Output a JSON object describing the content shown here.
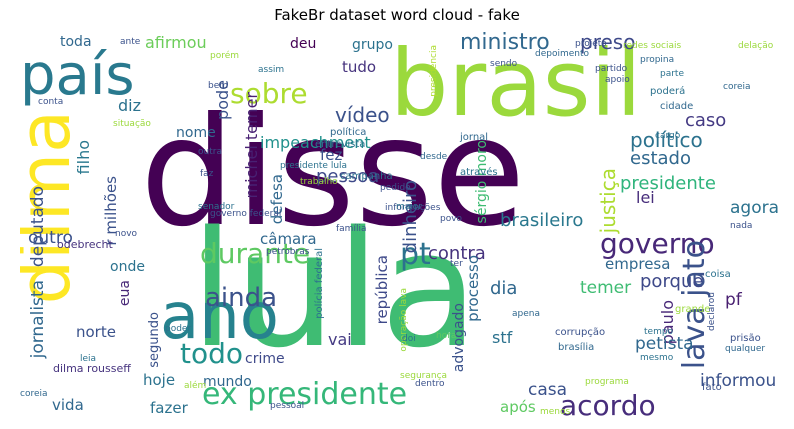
{
  "title": "FakeBr dataset word cloud - fake",
  "words": [
    {
      "text": "disse",
      "color": "#440154"
    },
    {
      "text": "lula",
      "color": "#3fbc73"
    },
    {
      "text": "brasil",
      "color": "#9bd93c"
    },
    {
      "text": "país",
      "color": "#29798e"
    },
    {
      "text": "dilma",
      "color": "#fde725"
    },
    {
      "text": "ano",
      "color": "#26828e"
    },
    {
      "text": "ex presidente",
      "color": "#35b779"
    },
    {
      "text": "acordo",
      "color": "#472d7b"
    },
    {
      "text": "governo",
      "color": "#482878"
    },
    {
      "text": "durante",
      "color": "#5ec962"
    },
    {
      "text": "lava jato",
      "color": "#3b528b"
    },
    {
      "text": "todo",
      "color": "#21918c"
    },
    {
      "text": "ainda",
      "color": "#3b528b"
    },
    {
      "text": "sobre",
      "color": "#addc30"
    },
    {
      "text": "pt",
      "color": "#2c728e"
    },
    {
      "text": "ministro",
      "color": "#31688e"
    },
    {
      "text": "preso",
      "color": "#3e4989"
    },
    {
      "text": "vídeo",
      "color": "#3b528b"
    },
    {
      "text": "político",
      "color": "#2c728e"
    },
    {
      "text": "presidente",
      "color": "#2fb47c"
    },
    {
      "text": "estado",
      "color": "#31688e"
    },
    {
      "text": "caso",
      "color": "#443a83"
    },
    {
      "text": "brasileiro",
      "color": "#2a788e"
    },
    {
      "text": "contra",
      "color": "#46337e"
    },
    {
      "text": "justiça",
      "color": "#addc30"
    },
    {
      "text": "dinheiro",
      "color": "#3b528b"
    },
    {
      "text": "pessoa",
      "color": "#3e4989"
    },
    {
      "text": "michel temer",
      "color": "#482173"
    },
    {
      "text": "deputado",
      "color": "#3b528b"
    },
    {
      "text": "jornalista",
      "color": "#31688e"
    },
    {
      "text": "afirmou",
      "color": "#6ccd5a"
    },
    {
      "text": "impeachment",
      "color": "#21918c"
    },
    {
      "text": "diz",
      "color": "#2c728e"
    },
    {
      "text": "filho",
      "color": "#2a788e"
    },
    {
      "text": "pode",
      "color": "#3b528b"
    },
    {
      "text": "nome",
      "color": "#31688e"
    },
    {
      "text": "toda",
      "color": "#31688e"
    },
    {
      "text": "deu",
      "color": "#440154"
    },
    {
      "text": "tudo",
      "color": "#46337e"
    },
    {
      "text": "grupo",
      "color": "#2c728e"
    },
    {
      "text": "sérgio moro",
      "color": "#3fbc73"
    },
    {
      "text": "defesa",
      "color": "#31688e"
    },
    {
      "text": "fez",
      "color": "#3b528b"
    },
    {
      "text": "lei",
      "color": "#472d7b"
    },
    {
      "text": "agora",
      "color": "#2c728e"
    },
    {
      "text": "dia",
      "color": "#31688e"
    },
    {
      "text": "temer",
      "color": "#3fbc73"
    },
    {
      "text": "porque",
      "color": "#3e4989"
    },
    {
      "text": "empresa",
      "color": "#31688e"
    },
    {
      "text": "pf",
      "color": "#481f70"
    },
    {
      "text": "paulo",
      "color": "#482878"
    },
    {
      "text": "petista",
      "color": "#31688e"
    },
    {
      "text": "casa",
      "color": "#3b528b"
    },
    {
      "text": "informou",
      "color": "#3b528b"
    },
    {
      "text": "após",
      "color": "#5ec962"
    },
    {
      "text": "stf",
      "color": "#2c728e"
    },
    {
      "text": "processo",
      "color": "#31688e"
    },
    {
      "text": "república",
      "color": "#3e4989"
    },
    {
      "text": "advogado",
      "color": "#3b528b"
    },
    {
      "text": "vai",
      "color": "#443a83"
    },
    {
      "text": "crime",
      "color": "#3e4989"
    },
    {
      "text": "mundo",
      "color": "#31688e"
    },
    {
      "text": "hoje",
      "color": "#2c728e"
    },
    {
      "text": "fazer",
      "color": "#2c728e"
    },
    {
      "text": "vida",
      "color": "#31688e"
    },
    {
      "text": "segundo",
      "color": "#3b528b"
    },
    {
      "text": "eua",
      "color": "#482878"
    },
    {
      "text": "norte",
      "color": "#3b528b"
    },
    {
      "text": "onde",
      "color": "#2c728e"
    },
    {
      "text": "outro",
      "color": "#3b528b"
    },
    {
      "text": "câmara",
      "color": "#31688e"
    },
    {
      "text": "r milhões",
      "color": "#3b528b"
    },
    {
      "text": "odebrecht",
      "color": "#46337e"
    },
    {
      "text": "dilma rousseff",
      "color": "#46337e"
    },
    {
      "text": "polícia federal",
      "color": "#2c728e"
    },
    {
      "text": "operação lava",
      "color": "#9bd93c"
    },
    {
      "text": "petrobras",
      "color": "#3b528b"
    },
    {
      "text": "segurança",
      "color": "#9bd93c"
    },
    {
      "text": "entrevista",
      "color": "#2c728e"
    },
    {
      "text": "política",
      "color": "#31688e"
    },
    {
      "text": "campanha",
      "color": "#2c728e"
    },
    {
      "text": "informações",
      "color": "#3b528b"
    },
    {
      "text": "através",
      "color": "#2c728e"
    },
    {
      "text": "presidência",
      "color": "#addc30"
    },
    {
      "text": "cidade",
      "color": "#31688e"
    },
    {
      "text": "parte",
      "color": "#2c728e"
    },
    {
      "text": "partido",
      "color": "#3b528b"
    },
    {
      "text": "poderá",
      "color": "#2c728e"
    },
    {
      "text": "jornal",
      "color": "#31688e"
    },
    {
      "text": "redes sociais",
      "color": "#9bd93c"
    },
    {
      "text": "propina",
      "color": "#31688e"
    },
    {
      "text": "projeto",
      "color": "#3b528b"
    },
    {
      "text": "coreia",
      "color": "#31688e"
    },
    {
      "text": "grande",
      "color": "#9bd93c"
    },
    {
      "text": "prisão",
      "color": "#3b528b"
    },
    {
      "text": "corrupção",
      "color": "#3b528b"
    },
    {
      "text": "brasília",
      "color": "#31688e"
    },
    {
      "text": "coisa",
      "color": "#2c728e"
    },
    {
      "text": "fato",
      "color": "#3b528b"
    },
    {
      "text": "senador",
      "color": "#2c728e"
    },
    {
      "text": "poder",
      "color": "#2c728e"
    },
    {
      "text": "novo",
      "color": "#3b528b"
    },
    {
      "text": "bem",
      "color": "#3b528b"
    },
    {
      "text": "assim",
      "color": "#2c728e"
    },
    {
      "text": "família",
      "color": "#3b528b"
    },
    {
      "text": "apena",
      "color": "#31688e"
    },
    {
      "text": "pedido",
      "color": "#3b528b"
    },
    {
      "text": "maior",
      "color": "#2c728e"
    },
    {
      "text": "desde",
      "color": "#31688e"
    },
    {
      "text": "povo",
      "color": "#3b528b"
    },
    {
      "text": "sendo",
      "color": "#3b528b"
    },
    {
      "text": "cargo",
      "color": "#2c728e"
    },
    {
      "text": "qualquer",
      "color": "#31688e"
    },
    {
      "text": "nada",
      "color": "#3b528b"
    },
    {
      "text": "outra",
      "color": "#3b528b"
    },
    {
      "text": "conta",
      "color": "#3b528b"
    },
    {
      "text": "leia",
      "color": "#2c728e"
    },
    {
      "text": "coreia",
      "color": "#31688e"
    },
    {
      "text": "hora",
      "color": "#5ec962"
    },
    {
      "text": "doi",
      "color": "#2c728e"
    },
    {
      "text": "ter",
      "color": "#3b528b"
    },
    {
      "text": "tempo",
      "color": "#2c728e"
    },
    {
      "text": "faz",
      "color": "#3b528b"
    },
    {
      "text": "programa",
      "color": "#9bd93c"
    },
    {
      "text": "menos",
      "color": "#9bd93c"
    },
    {
      "text": "dentro",
      "color": "#3b528b"
    },
    {
      "text": "declarou",
      "color": "#3b528b"
    },
    {
      "text": "apoio",
      "color": "#3b528b"
    },
    {
      "text": "porém",
      "color": "#9bd93c"
    },
    {
      "text": "ante",
      "color": "#3b528b"
    },
    {
      "text": "depoimento",
      "color": "#31688e"
    },
    {
      "text": "delação",
      "color": "#9bd93c"
    },
    {
      "text": "presidente lula",
      "color": "#2c728e"
    },
    {
      "text": "trabalho",
      "color": "#9bd93c"
    },
    {
      "text": "situação",
      "color": "#9bd93c"
    },
    {
      "text": "governo federal",
      "color": "#3b528b"
    },
    {
      "text": "mesmo",
      "color": "#2c728e"
    },
    {
      "text": "além",
      "color": "#9bd93c"
    },
    {
      "text": "pessoal",
      "color": "#3b528b"
    }
  ]
}
